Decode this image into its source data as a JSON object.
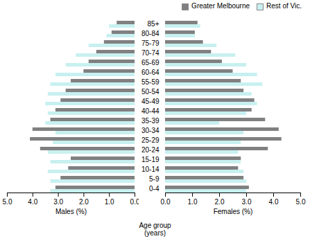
{
  "chart_data": [
    {
      "type": "bar",
      "orientation": "horizontal",
      "xlabel": "Males (%)",
      "categories": [
        "0-4",
        "5-9",
        "10-14",
        "15-19",
        "20-24",
        "25-29",
        "30-34",
        "35-39",
        "40-44",
        "45-49",
        "50-54",
        "55-59",
        "60-64",
        "65-69",
        "70-74",
        "75-79",
        "80-84",
        "85+"
      ],
      "series": [
        {
          "name": "Greater Melbourne",
          "color": "#808080",
          "values": [
            3.1,
            2.9,
            2.6,
            2.5,
            3.7,
            4.1,
            4.0,
            3.3,
            3.1,
            2.9,
            2.7,
            2.5,
            2.0,
            1.8,
            1.5,
            1.2,
            0.9,
            0.7
          ]
        },
        {
          "name": "Rest of Vic.",
          "color": "#c8f0f0",
          "values": [
            3.3,
            3.3,
            3.4,
            3.3,
            3.4,
            3.2,
            3.1,
            3.5,
            3.4,
            3.5,
            3.4,
            3.3,
            3.1,
            2.7,
            2.3,
            1.8,
            1.1,
            1.0
          ]
        }
      ],
      "xlim": [
        5,
        0
      ],
      "xticks": [
        0,
        1,
        2,
        3,
        4,
        5
      ],
      "grid": false,
      "tick_labels": "x"
    },
    {
      "type": "bar",
      "orientation": "horizontal",
      "xlabel": "Females (%)",
      "ylabel": "Age group\n(years)",
      "categories": [
        "0-4",
        "5-9",
        "10-14",
        "15-19",
        "20-24",
        "25-29",
        "30-34",
        "35-39",
        "40-44",
        "45-49",
        "50-54",
        "55-59",
        "60-64",
        "65-69",
        "70-74",
        "75-79",
        "80-84",
        "85+"
      ],
      "series": [
        {
          "name": "Greater Melbourne",
          "color": "#808080",
          "values": [
            3.1,
            2.9,
            2.7,
            2.8,
            3.8,
            4.3,
            4.2,
            3.7,
            3.2,
            3.3,
            2.9,
            2.8,
            2.5,
            2.1,
            1.7,
            1.4,
            1.1,
            1.2
          ]
        },
        {
          "name": "Rest of Vic.",
          "color": "#c8f0f0",
          "values": [
            3.0,
            3.0,
            2.9,
            2.8,
            2.7,
            2.8,
            2.9,
            2.0,
            3.0,
            3.4,
            3.2,
            3.6,
            3.4,
            3.0,
            2.6,
            1.9,
            1.1,
            1.3
          ]
        }
      ],
      "xlim": [
        0,
        5
      ],
      "xticks": [
        0,
        1,
        2,
        3,
        4,
        5
      ],
      "grid": false,
      "legend": "upper right"
    }
  ]
}
